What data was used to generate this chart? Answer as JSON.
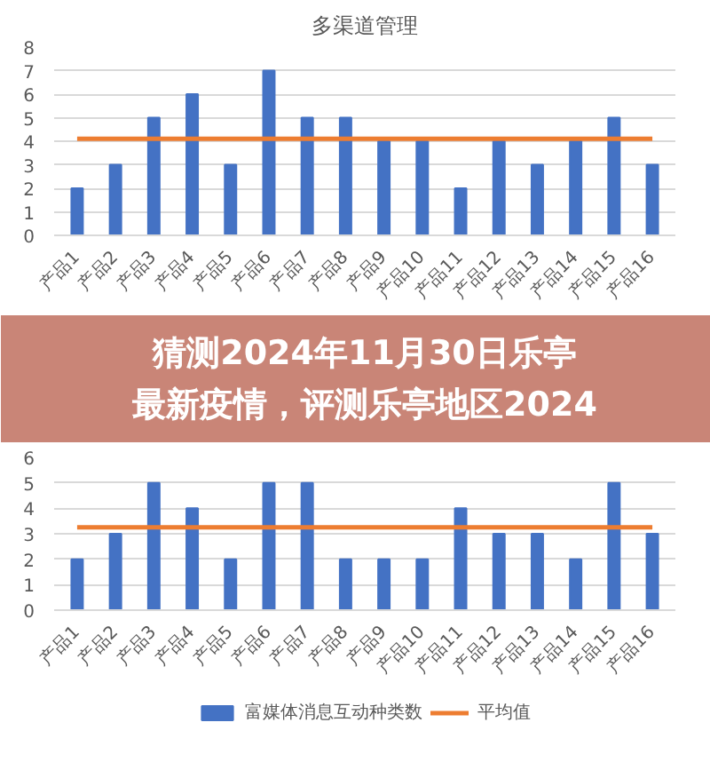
{
  "chart_data": [
    {
      "type": "bar",
      "title": "多渠道管理",
      "categories": [
        "产品1",
        "产品2",
        "产品3",
        "产品4",
        "产品5",
        "产品6",
        "产品7",
        "产品8",
        "产品9",
        "产品10",
        "产品11",
        "产品12",
        "产品13",
        "产品14",
        "产品15",
        "产品16"
      ],
      "ylim": [
        0,
        8
      ],
      "yticks": [
        0,
        1,
        2,
        3,
        4,
        5,
        6,
        7,
        8
      ],
      "grid": "y",
      "series": [
        {
          "type": "bar",
          "color": "#4472c4",
          "values": [
            2,
            3,
            5,
            6,
            3,
            7,
            5,
            5,
            4,
            4,
            2,
            4,
            3,
            4,
            5,
            3
          ]
        },
        {
          "type": "line",
          "color": "#ed7d31",
          "values": [
            4.1,
            4.1,
            4.1,
            4.1,
            4.1,
            4.1,
            4.1,
            4.1,
            4.1,
            4.1,
            4.1,
            4.1,
            4.1,
            4.1,
            4.1,
            4.1
          ]
        }
      ]
    },
    {
      "type": "other",
      "title": "猜测2024年11月30日乐亭最新疫情，评测乐亭地区2024"
    },
    {
      "type": "bar",
      "categories": [
        "产品1",
        "产品2",
        "产品3",
        "产品4",
        "产品5",
        "产品6",
        "产品7",
        "产品8",
        "产品9",
        "产品10",
        "产品11",
        "产品12",
        "产品13",
        "产品14",
        "产品15",
        "产品16"
      ],
      "ylim": [
        0,
        6
      ],
      "yticks": [
        0,
        1,
        2,
        3,
        4,
        5,
        6
      ],
      "grid": "y",
      "legend": "bottom",
      "series": [
        {
          "type": "bar",
          "name": "富媒体消息互动种类数",
          "color": "#4472c4",
          "values": [
            2,
            3,
            5,
            4,
            2,
            5,
            5,
            2,
            2,
            2,
            4,
            3,
            3,
            2,
            5,
            3
          ]
        },
        {
          "type": "line",
          "name": "平均值",
          "color": "#ed7d31",
          "values": [
            3.25,
            3.25,
            3.25,
            3.25,
            3.25,
            3.25,
            3.25,
            3.25,
            3.25,
            3.25,
            3.25,
            3.25,
            3.25,
            3.25,
            3.25,
            3.25
          ]
        }
      ]
    }
  ]
}
